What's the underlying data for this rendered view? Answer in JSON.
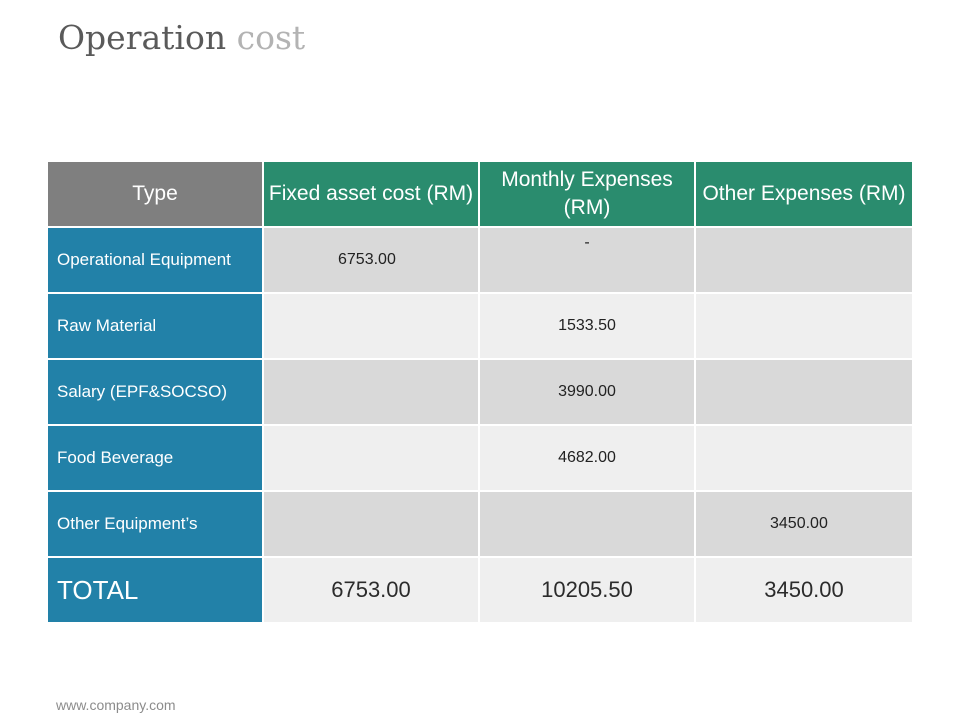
{
  "title": {
    "main": "Operation",
    "accent": "cost"
  },
  "table": {
    "headers": [
      "Type",
      "Fixed asset cost (RM)",
      "Monthly Expenses (RM)",
      "Other Expenses (RM)"
    ],
    "rows": [
      {
        "label": "Operational Equipment",
        "cells": [
          "6753.00",
          "-",
          ""
        ]
      },
      {
        "label": "Raw Material",
        "cells": [
          "",
          "1533.50",
          ""
        ]
      },
      {
        "label": "Salary (EPF&SOCSO)",
        "cells": [
          "",
          "3990.00",
          ""
        ]
      },
      {
        "label": "Food Beverage",
        "cells": [
          "",
          "4682.00",
          ""
        ]
      },
      {
        "label": "Other Equipment’s",
        "cells": [
          "",
          "",
          "3450.00"
        ]
      }
    ],
    "total": {
      "label": "TOTAL",
      "cells": [
        "6753.00",
        "10205.50",
        "3450.00"
      ]
    }
  },
  "footer": {
    "url": "www.company.com"
  },
  "colors": {
    "header_gray": "#7f7f7f",
    "header_green": "#2a8c6e",
    "row_label_blue": "#2281a8",
    "cell_dark": "#d9d9d9",
    "cell_light": "#efefef"
  }
}
